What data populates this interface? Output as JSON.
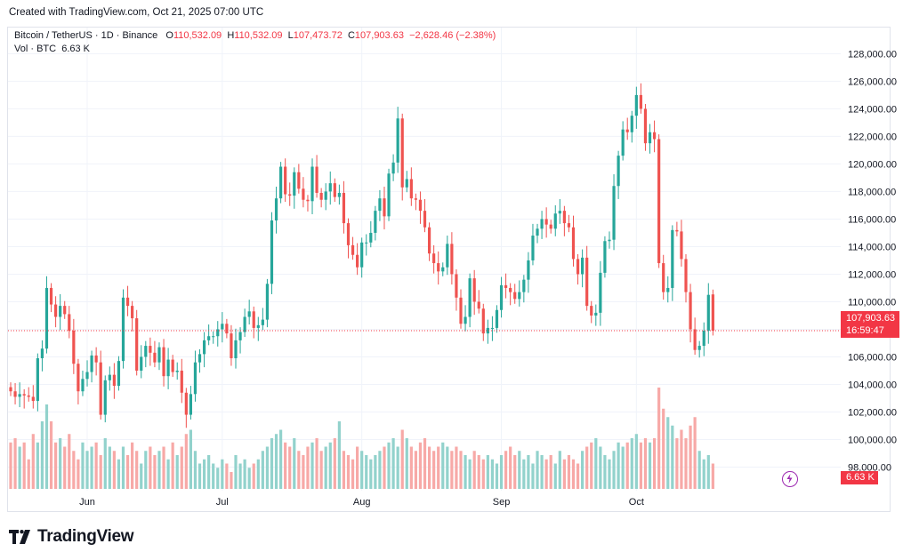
{
  "header": {
    "created": "Created with TradingView.com, Oct 21, 2025 07:00 UTC"
  },
  "legend": {
    "symbol": "Bitcoin / TetherUS · 1D · Binance",
    "o_label": "O",
    "o_value": "110,532.09",
    "h_label": "H",
    "h_value": "110,532.09",
    "l_label": "L",
    "l_value": "107,473.72",
    "c_label": "C",
    "c_value": "107,903.63",
    "change": "−2,628.46 (−2.38%)",
    "vol_label": "Vol · BTC",
    "vol_value": "6.63 K"
  },
  "price_tag": {
    "price": "107,903.63",
    "countdown": "16:59:47"
  },
  "volume_tag": "6.63 K",
  "brand": {
    "name": "TradingView"
  },
  "colors": {
    "up": "#26a69a",
    "down": "#ef5350",
    "vol_up": "#92d2cc",
    "vol_down": "#f7a9a7",
    "last": "#f23645"
  },
  "chart_data": {
    "type": "candlestick",
    "start_date": "2025-05-15",
    "interval": "1D",
    "ylim": [
      97000,
      128800
    ],
    "y_ticks": [
      "98,000.00",
      "100,000.00",
      "102,000.00",
      "104,000.00",
      "106,000.00",
      "108,000.00",
      "110,000.00",
      "112,000.00",
      "114,000.00",
      "116,000.00",
      "118,000.00",
      "120,000.00",
      "122,000.00",
      "124,000.00",
      "126,000.00",
      "128,000.00"
    ],
    "x_ticks": [
      {
        "label": "Jun",
        "date": "2025-06-01"
      },
      {
        "label": "Jul",
        "date": "2025-07-01"
      },
      {
        "label": "Aug",
        "date": "2025-08-01"
      },
      {
        "label": "Sep",
        "date": "2025-09-01"
      },
      {
        "label": "Oct",
        "date": "2025-10-01"
      }
    ],
    "last_price": 107903.63,
    "close": [
      103500,
      103100,
      103300,
      103200,
      103100,
      102800,
      105900,
      106600,
      111000,
      109800,
      108900,
      109700,
      109100,
      107900,
      105500,
      103500,
      104400,
      104900,
      106100,
      105600,
      101800,
      104300,
      104700,
      103900,
      105700,
      110300,
      109700,
      108800,
      105000,
      106000,
      106800,
      106300,
      105600,
      106700,
      104600,
      105800,
      104900,
      105000,
      103400,
      101800,
      103300,
      105600,
      106200,
      107200,
      107500,
      107500,
      108000,
      108400,
      107700,
      105900,
      107200,
      107800,
      108900,
      109300,
      108100,
      108300,
      108700,
      111300,
      115900,
      117500,
      119800,
      117800,
      117700,
      119400,
      118200,
      117400,
      117300,
      119800,
      117900,
      117400,
      118000,
      118600,
      117600,
      117900,
      115700,
      114100,
      113400,
      112500,
      114300,
      114300,
      115000,
      116600,
      117500,
      116200,
      119300,
      120100,
      123300,
      118300,
      118900,
      117500,
      117400,
      116600,
      115400,
      113500,
      112800,
      112200,
      112500,
      114200,
      112000,
      110300,
      108400,
      108900,
      111700,
      110000,
      109500,
      107700,
      108100,
      108100,
      109400,
      111200,
      111000,
      110700,
      110200,
      110700,
      111600,
      113000,
      114800,
      115300,
      116000,
      115600,
      115300,
      116400,
      116600,
      115700,
      115400,
      113100,
      112000,
      113200,
      109700,
      109000,
      109200,
      112100,
      114400,
      114500,
      118400,
      120600,
      122500,
      122300,
      123500,
      125000,
      124000,
      121500,
      122300,
      121800,
      112800,
      110700,
      111000,
      115200,
      115100,
      113100,
      110700,
      108000,
      106500,
      106800,
      107900,
      110500,
      107900
    ],
    "open": [
      103800,
      103500,
      103100,
      103300,
      103200,
      103100,
      102800,
      105900,
      106600,
      111000,
      109800,
      108900,
      109700,
      109100,
      107900,
      105500,
      103500,
      104400,
      104900,
      106100,
      105600,
      101800,
      104300,
      104700,
      103900,
      105700,
      110300,
      109700,
      108800,
      105000,
      106000,
      106800,
      106300,
      105600,
      106700,
      104600,
      105800,
      104900,
      105000,
      103400,
      101800,
      103300,
      105600,
      106200,
      107200,
      107500,
      107500,
      108000,
      108400,
      107700,
      105900,
      107200,
      107800,
      108900,
      109300,
      108100,
      108300,
      108700,
      111300,
      115900,
      117500,
      119800,
      117800,
      117700,
      119400,
      118200,
      117400,
      117300,
      119800,
      117900,
      117400,
      118000,
      118600,
      117600,
      117900,
      115700,
      114100,
      113400,
      112500,
      114300,
      114300,
      115000,
      116600,
      117500,
      116200,
      119300,
      120100,
      123300,
      118300,
      118900,
      117500,
      117400,
      116600,
      115400,
      113500,
      112800,
      112200,
      112500,
      114200,
      112000,
      110300,
      108400,
      108900,
      111700,
      110000,
      109500,
      107700,
      108100,
      108100,
      109400,
      111200,
      111000,
      110700,
      110200,
      110700,
      111600,
      113000,
      114800,
      115300,
      116000,
      115600,
      115300,
      116400,
      116600,
      115700,
      115400,
      113100,
      112000,
      113200,
      109700,
      109000,
      109200,
      112100,
      114400,
      114500,
      118400,
      120600,
      122500,
      122300,
      123500,
      125000,
      124000,
      121500,
      122300,
      121800,
      112800,
      110700,
      111000,
      115200,
      115100,
      113100,
      110700,
      108000,
      106500,
      106800,
      107900,
      110532.09
    ],
    "volume_ratio": [
      0.55,
      0.6,
      0.5,
      0.55,
      0.35,
      0.65,
      0.55,
      0.8,
      1.0,
      0.8,
      0.55,
      0.6,
      0.5,
      0.65,
      0.45,
      0.35,
      0.55,
      0.45,
      0.5,
      0.55,
      0.4,
      0.6,
      0.5,
      0.45,
      0.35,
      0.5,
      0.4,
      0.55,
      0.45,
      0.3,
      0.45,
      0.5,
      0.4,
      0.45,
      0.5,
      0.35,
      0.55,
      0.4,
      0.5,
      0.65,
      0.7,
      0.45,
      0.3,
      0.35,
      0.4,
      0.3,
      0.25,
      0.35,
      0.3,
      0.2,
      0.4,
      0.3,
      0.35,
      0.25,
      0.3,
      0.35,
      0.45,
      0.5,
      0.6,
      0.65,
      0.7,
      0.55,
      0.5,
      0.6,
      0.45,
      0.4,
      0.5,
      0.55,
      0.6,
      0.45,
      0.5,
      0.55,
      0.6,
      0.8,
      0.45,
      0.4,
      0.35,
      0.5,
      0.45,
      0.4,
      0.35,
      0.4,
      0.45,
      0.5,
      0.55,
      0.6,
      0.5,
      0.7,
      0.6,
      0.5,
      0.45,
      0.55,
      0.6,
      0.5,
      0.45,
      0.5,
      0.55,
      0.5,
      0.45,
      0.5,
      0.45,
      0.4,
      0.35,
      0.45,
      0.4,
      0.35,
      0.4,
      0.35,
      0.3,
      0.4,
      0.45,
      0.5,
      0.4,
      0.45,
      0.35,
      0.4,
      0.3,
      0.45,
      0.4,
      0.35,
      0.4,
      0.3,
      0.45,
      0.35,
      0.4,
      0.35,
      0.3,
      0.45,
      0.5,
      0.55,
      0.6,
      0.5,
      0.4,
      0.35,
      0.45,
      0.55,
      0.5,
      0.55,
      0.6,
      0.65,
      0.55,
      0.6,
      0.55,
      0.6,
      1.2,
      0.95,
      0.85,
      0.75,
      0.6,
      0.7,
      0.6,
      0.75,
      0.85,
      0.45,
      0.35,
      0.4,
      0.3
    ]
  }
}
